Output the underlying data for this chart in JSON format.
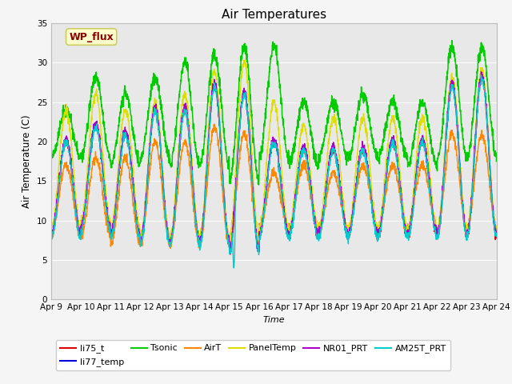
{
  "title": "Air Temperatures",
  "xlabel": "Time",
  "ylabel": "Air Temperature (C)",
  "ylim": [
    0,
    35
  ],
  "yticks": [
    0,
    5,
    10,
    15,
    20,
    25,
    30,
    35
  ],
  "x_labels": [
    "Apr 9",
    "Apr 10",
    "Apr 11",
    "Apr 12",
    "Apr 13",
    "Apr 14",
    "Apr 15",
    "Apr 16",
    "Apr 17",
    "Apr 18",
    "Apr 19",
    "Apr 20",
    "Apr 21",
    "Apr 22",
    "Apr 23",
    "Apr 24"
  ],
  "n_days": 15,
  "points_per_day": 144,
  "series_order": [
    "li75_t",
    "li77_temp",
    "Tsonic",
    "AirT",
    "PanelTemp",
    "NR01_PRT",
    "AM25T_PRT"
  ],
  "series": {
    "li75_t": {
      "color": "#dd0000",
      "lw": 1.0
    },
    "li77_temp": {
      "color": "#0000dd",
      "lw": 1.0
    },
    "Tsonic": {
      "color": "#00cc00",
      "lw": 1.1
    },
    "AirT": {
      "color": "#ff8800",
      "lw": 1.0
    },
    "PanelTemp": {
      "color": "#dddd00",
      "lw": 1.0
    },
    "NR01_PRT": {
      "color": "#aa00cc",
      "lw": 1.0
    },
    "AM25T_PRT": {
      "color": "#00cccc",
      "lw": 1.0
    }
  },
  "annotation_text": "WP_flux",
  "annotation_color": "#8b0000",
  "annotation_bg": "#ffffcc",
  "annotation_border": "#cccc66",
  "plot_bg": "#e8e8e8",
  "fig_bg": "#f5f5f5",
  "grid_color": "#ffffff",
  "title_fontsize": 11,
  "legend_rows": [
    [
      "li75_t",
      "li77_temp",
      "Tsonic",
      "AirT",
      "PanelTemp",
      "NR01_PRT"
    ],
    [
      "AM25T_PRT"
    ]
  ]
}
